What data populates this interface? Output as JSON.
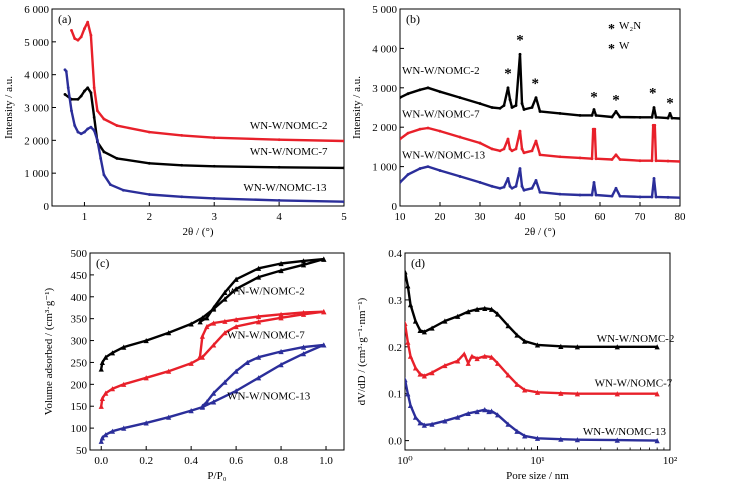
{
  "colors": {
    "black": "#000000",
    "red": "#e8202a",
    "blue": "#2b2e9a"
  },
  "chart_data": [
    {
      "panel": "(a)",
      "type": "line",
      "xlabel": "2θ / (°)",
      "ylabel": "Intensity / a.u.",
      "xlim": [
        0.5,
        5
      ],
      "ylim": [
        0,
        6000
      ],
      "xticks": [
        1,
        2,
        3,
        4,
        5
      ],
      "yticks": [
        0,
        1000,
        2000,
        3000,
        4000,
        5000,
        6000
      ],
      "ytick_labels": [
        "0",
        "1 000",
        "2 000",
        "3 000",
        "4 000",
        "5 000",
        "6 000"
      ],
      "series": [
        {
          "name": "WN-W/NOMC-2",
          "color": "#e8202a",
          "x": [
            0.8,
            0.85,
            0.9,
            0.95,
            1.0,
            1.05,
            1.1,
            1.15,
            1.2,
            1.3,
            1.5,
            2.0,
            2.5,
            3.0,
            4.0,
            5.0
          ],
          "y": [
            5350,
            5100,
            5050,
            5150,
            5400,
            5600,
            5200,
            3600,
            2900,
            2650,
            2450,
            2250,
            2150,
            2080,
            2020,
            1980
          ]
        },
        {
          "name": "WN-W/NOMC-7",
          "color": "#000000",
          "x": [
            0.7,
            0.8,
            0.9,
            0.95,
            1.0,
            1.05,
            1.1,
            1.15,
            1.2,
            1.3,
            1.5,
            2.0,
            2.5,
            3.0,
            4.0,
            5.0
          ],
          "y": [
            3400,
            3250,
            3250,
            3350,
            3500,
            3600,
            3450,
            2700,
            1950,
            1650,
            1450,
            1300,
            1240,
            1210,
            1180,
            1160
          ]
        },
        {
          "name": "WN-W/NOMC-13",
          "color": "#2b2e9a",
          "x": [
            0.7,
            0.72,
            0.75,
            0.8,
            0.85,
            0.9,
            0.95,
            1.0,
            1.05,
            1.1,
            1.15,
            1.2,
            1.25,
            1.3,
            1.4,
            1.6,
            2.0,
            2.5,
            3.0,
            4.0,
            5.0
          ],
          "y": [
            4150,
            4100,
            3600,
            2900,
            2450,
            2250,
            2200,
            2250,
            2350,
            2400,
            2300,
            2000,
            1450,
            950,
            650,
            480,
            350,
            280,
            230,
            170,
            130
          ]
        }
      ],
      "annotations": [
        {
          "text": "WN-W/NOMC-2",
          "x": 3.55,
          "y": 2350
        },
        {
          "text": "WN-W/NOMC-7",
          "x": 3.55,
          "y": 1550
        },
        {
          "text": "WN-W/NOMC-13",
          "x": 3.45,
          "y": 450
        }
      ]
    },
    {
      "panel": "(b)",
      "type": "line",
      "xlabel": "2θ / (°)",
      "ylabel": "Intensity / a.u.",
      "xlim": [
        10,
        80
      ],
      "ylim": [
        0,
        5000
      ],
      "xticks": [
        10,
        20,
        30,
        40,
        50,
        60,
        70,
        80
      ],
      "yticks": [
        0,
        1000,
        2000,
        3000,
        4000,
        5000
      ],
      "ytick_labels": [
        "0",
        "1 000",
        "2 000",
        "3 000",
        "4 000",
        "5 000"
      ],
      "legend": [
        {
          "symbol": "*",
          "color": "#e8202a",
          "label": "W₂N"
        },
        {
          "symbol": "*",
          "color": "#000000",
          "label": "W"
        }
      ],
      "series": [
        {
          "name": "WN-W/NOMC-2",
          "color": "#000000",
          "x": [
            10,
            12,
            15,
            17,
            20,
            25,
            30,
            33,
            35,
            36,
            37,
            37.5,
            38,
            39,
            40,
            40.5,
            41,
            43,
            44,
            45,
            50,
            55,
            58,
            58.5,
            59,
            63,
            64,
            65,
            70,
            73,
            73.5,
            74,
            77,
            77.5,
            78,
            80
          ],
          "y": [
            2750,
            2850,
            2950,
            3000,
            2900,
            2750,
            2600,
            2500,
            2480,
            2550,
            3000,
            2700,
            2500,
            2550,
            3850,
            2600,
            2450,
            2500,
            2750,
            2400,
            2350,
            2300,
            2300,
            2450,
            2300,
            2260,
            2400,
            2260,
            2250,
            2250,
            2500,
            2250,
            2230,
            2350,
            2230,
            2220
          ]
        },
        {
          "name": "WN-W/NOMC-7",
          "color": "#e8202a",
          "x": [
            10,
            12,
            15,
            17,
            20,
            25,
            30,
            33,
            35,
            36,
            37,
            37.5,
            38,
            39,
            40,
            40.5,
            41,
            43,
            44,
            45,
            50,
            55,
            58,
            58.3,
            58.7,
            59,
            63,
            64,
            65,
            70,
            73,
            73.3,
            73.7,
            74,
            77,
            80
          ],
          "y": [
            1700,
            1850,
            1950,
            1980,
            1900,
            1750,
            1600,
            1450,
            1400,
            1450,
            1700,
            1450,
            1400,
            1450,
            1900,
            1450,
            1350,
            1400,
            1650,
            1300,
            1250,
            1220,
            1200,
            1950,
            1950,
            1200,
            1180,
            1300,
            1180,
            1150,
            1150,
            2050,
            2050,
            1150,
            1140,
            1130
          ]
        },
        {
          "name": "WN-W/NOMC-13",
          "color": "#2b2e9a",
          "x": [
            10,
            12,
            15,
            17,
            20,
            25,
            30,
            33,
            35,
            36,
            37,
            37.5,
            38,
            39,
            40,
            40.5,
            41,
            43,
            44,
            45,
            50,
            55,
            58,
            58.5,
            59,
            63,
            64,
            65,
            70,
            73,
            73.5,
            74,
            77,
            80
          ],
          "y": [
            600,
            800,
            950,
            1000,
            900,
            750,
            600,
            500,
            450,
            480,
            700,
            500,
            450,
            500,
            950,
            500,
            400,
            450,
            650,
            350,
            300,
            280,
            280,
            600,
            280,
            250,
            450,
            250,
            230,
            230,
            700,
            230,
            220,
            210
          ]
        }
      ],
      "annotations": [
        {
          "text": "WN-W/NOMC-2",
          "x": 10.5,
          "y": 3350
        },
        {
          "text": "WN-W/NOMC-7",
          "x": 10.5,
          "y": 2250
        },
        {
          "text": "WN-W/NOMC-13",
          "x": 10.5,
          "y": 1210
        }
      ],
      "markers": [
        {
          "symbol": "*",
          "color": "#e8202a",
          "x": 37.0,
          "y": 3250
        },
        {
          "symbol": "*",
          "color": "#000000",
          "x": 40.0,
          "y": 4100
        },
        {
          "symbol": "*",
          "color": "#e8202a",
          "x": 43.8,
          "y": 3000
        },
        {
          "symbol": "*",
          "color": "#000000",
          "x": 58.5,
          "y": 2650
        },
        {
          "symbol": "*",
          "color": "#e8202a",
          "x": 64.0,
          "y": 2580
        },
        {
          "symbol": "*",
          "color": "#000000",
          "x": 73.2,
          "y": 2750
        },
        {
          "symbol": "*",
          "color": "#e8202a",
          "x": 77.5,
          "y": 2500
        }
      ]
    },
    {
      "panel": "(c)",
      "type": "line",
      "xlabel": "P/P₀",
      "ylabel": "Volume adsorbed / (cm³·g⁻¹)",
      "xlim": [
        -0.05,
        1.08
      ],
      "ylim": [
        50,
        500
      ],
      "xticks": [
        0.0,
        0.2,
        0.4,
        0.6,
        0.8,
        1.0
      ],
      "xtick_labels": [
        "0.0",
        "0.2",
        "0.4",
        "0.6",
        "0.8",
        "1.0"
      ],
      "yticks": [
        50,
        100,
        150,
        200,
        250,
        300,
        350,
        400,
        450,
        500
      ],
      "series": [
        {
          "name": "WN-W/NOMC-2 adsorption",
          "color": "#000000",
          "x": [
            0.0,
            0.005,
            0.02,
            0.05,
            0.1,
            0.2,
            0.3,
            0.4,
            0.45,
            0.5,
            0.55,
            0.6,
            0.7,
            0.8,
            0.9,
            0.99
          ],
          "y": [
            235,
            250,
            262,
            272,
            285,
            300,
            318,
            338,
            352,
            372,
            395,
            418,
            445,
            460,
            473,
            486
          ]
        },
        {
          "name": "WN-W/NOMC-2 desorption",
          "color": "#000000",
          "x": [
            0.99,
            0.9,
            0.8,
            0.7,
            0.6,
            0.55,
            0.5,
            0.47,
            0.44
          ],
          "y": [
            486,
            482,
            476,
            465,
            440,
            410,
            375,
            352,
            343
          ]
        },
        {
          "name": "WN-W/NOMC-7 adsorption",
          "color": "#e8202a",
          "x": [
            0.0,
            0.005,
            0.02,
            0.05,
            0.1,
            0.2,
            0.3,
            0.4,
            0.45,
            0.5,
            0.55,
            0.6,
            0.7,
            0.8,
            0.9,
            0.99
          ],
          "y": [
            150,
            168,
            180,
            190,
            200,
            215,
            230,
            248,
            262,
            290,
            318,
            332,
            343,
            352,
            360,
            366
          ]
        },
        {
          "name": "WN-W/NOMC-7 desorption",
          "color": "#e8202a",
          "x": [
            0.99,
            0.9,
            0.8,
            0.7,
            0.6,
            0.55,
            0.5,
            0.47,
            0.45,
            0.44
          ],
          "y": [
            366,
            364,
            360,
            355,
            348,
            344,
            340,
            332,
            310,
            265
          ]
        },
        {
          "name": "WN-W/NOMC-13 adsorption",
          "color": "#2b2e9a",
          "x": [
            0.0,
            0.005,
            0.02,
            0.05,
            0.1,
            0.2,
            0.3,
            0.4,
            0.45,
            0.5,
            0.6,
            0.7,
            0.8,
            0.9,
            0.99
          ],
          "y": [
            70,
            78,
            85,
            93,
            100,
            112,
            125,
            140,
            148,
            160,
            185,
            215,
            245,
            270,
            290
          ]
        },
        {
          "name": "WN-W/NOMC-13 desorption",
          "color": "#2b2e9a",
          "x": [
            0.99,
            0.9,
            0.8,
            0.7,
            0.65,
            0.6,
            0.55,
            0.5,
            0.47,
            0.45
          ],
          "y": [
            290,
            285,
            275,
            262,
            250,
            230,
            205,
            180,
            160,
            150
          ]
        }
      ],
      "annotations": [
        {
          "text": "WN-W/NOMC-2",
          "x": 0.56,
          "y": 405
        },
        {
          "text": "WN-W/NOMC-7",
          "x": 0.56,
          "y": 305
        },
        {
          "text": "WN-W/NOMC-13",
          "x": 0.56,
          "y": 165
        }
      ]
    },
    {
      "panel": "(d)",
      "type": "line",
      "xlabel": "Pore size / nm",
      "ylabel": "dV/dD / (cm³·g⁻¹·nm⁻¹)",
      "xscale": "log",
      "xlim": [
        1,
        100
      ],
      "ylim": [
        -0.02,
        0.4
      ],
      "xtick_labels": [
        "10⁰",
        "10¹",
        "10²"
      ],
      "yticks": [
        0.0,
        0.1,
        0.2,
        0.3,
        0.4
      ],
      "ytick_labels": [
        "0.0",
        "0.1",
        "0.2",
        "0.3",
        "0.4"
      ],
      "series": [
        {
          "name": "WN-W/NOMC-2",
          "color": "#000000",
          "x": [
            1.0,
            1.05,
            1.1,
            1.2,
            1.3,
            1.4,
            1.6,
            2.0,
            2.5,
            3.0,
            3.5,
            4.0,
            4.5,
            5.0,
            6.0,
            7.0,
            8.0,
            10,
            15,
            20,
            40,
            80
          ],
          "y": [
            0.36,
            0.33,
            0.29,
            0.255,
            0.235,
            0.232,
            0.24,
            0.255,
            0.265,
            0.275,
            0.28,
            0.282,
            0.28,
            0.27,
            0.245,
            0.225,
            0.212,
            0.204,
            0.201,
            0.2,
            0.2,
            0.2
          ]
        },
        {
          "name": "WN-W/NOMC-7",
          "color": "#e8202a",
          "x": [
            1.0,
            1.05,
            1.1,
            1.2,
            1.3,
            1.4,
            1.6,
            2.0,
            2.5,
            2.8,
            3.0,
            3.2,
            3.5,
            4.0,
            4.5,
            5.0,
            6.0,
            7.0,
            8.0,
            10,
            15,
            20,
            40,
            80
          ],
          "y": [
            0.25,
            0.21,
            0.18,
            0.155,
            0.142,
            0.138,
            0.145,
            0.16,
            0.17,
            0.185,
            0.165,
            0.18,
            0.175,
            0.18,
            0.178,
            0.165,
            0.14,
            0.12,
            0.108,
            0.103,
            0.101,
            0.1,
            0.1,
            0.1
          ]
        },
        {
          "name": "WN-W/NOMC-13",
          "color": "#2b2e9a",
          "x": [
            1.0,
            1.05,
            1.1,
            1.2,
            1.3,
            1.4,
            1.6,
            2.0,
            2.5,
            3.0,
            3.5,
            4.0,
            4.3,
            4.5,
            5.0,
            6.0,
            7.0,
            8.0,
            10,
            15,
            20,
            40,
            80
          ],
          "y": [
            0.13,
            0.1,
            0.075,
            0.05,
            0.038,
            0.033,
            0.035,
            0.042,
            0.05,
            0.058,
            0.062,
            0.066,
            0.062,
            0.063,
            0.055,
            0.035,
            0.02,
            0.01,
            0.005,
            0.003,
            0.002,
            0.001,
            0.0
          ]
        }
      ],
      "annotations": [
        {
          "text": "WN-W/NOMC-2",
          "x": 28,
          "y": 0.21
        },
        {
          "text": "WN-W/NOMC-7",
          "x": 27,
          "y": 0.115
        },
        {
          "text": "WN-W/NOMC-13",
          "x": 22,
          "y": 0.012
        }
      ]
    }
  ]
}
